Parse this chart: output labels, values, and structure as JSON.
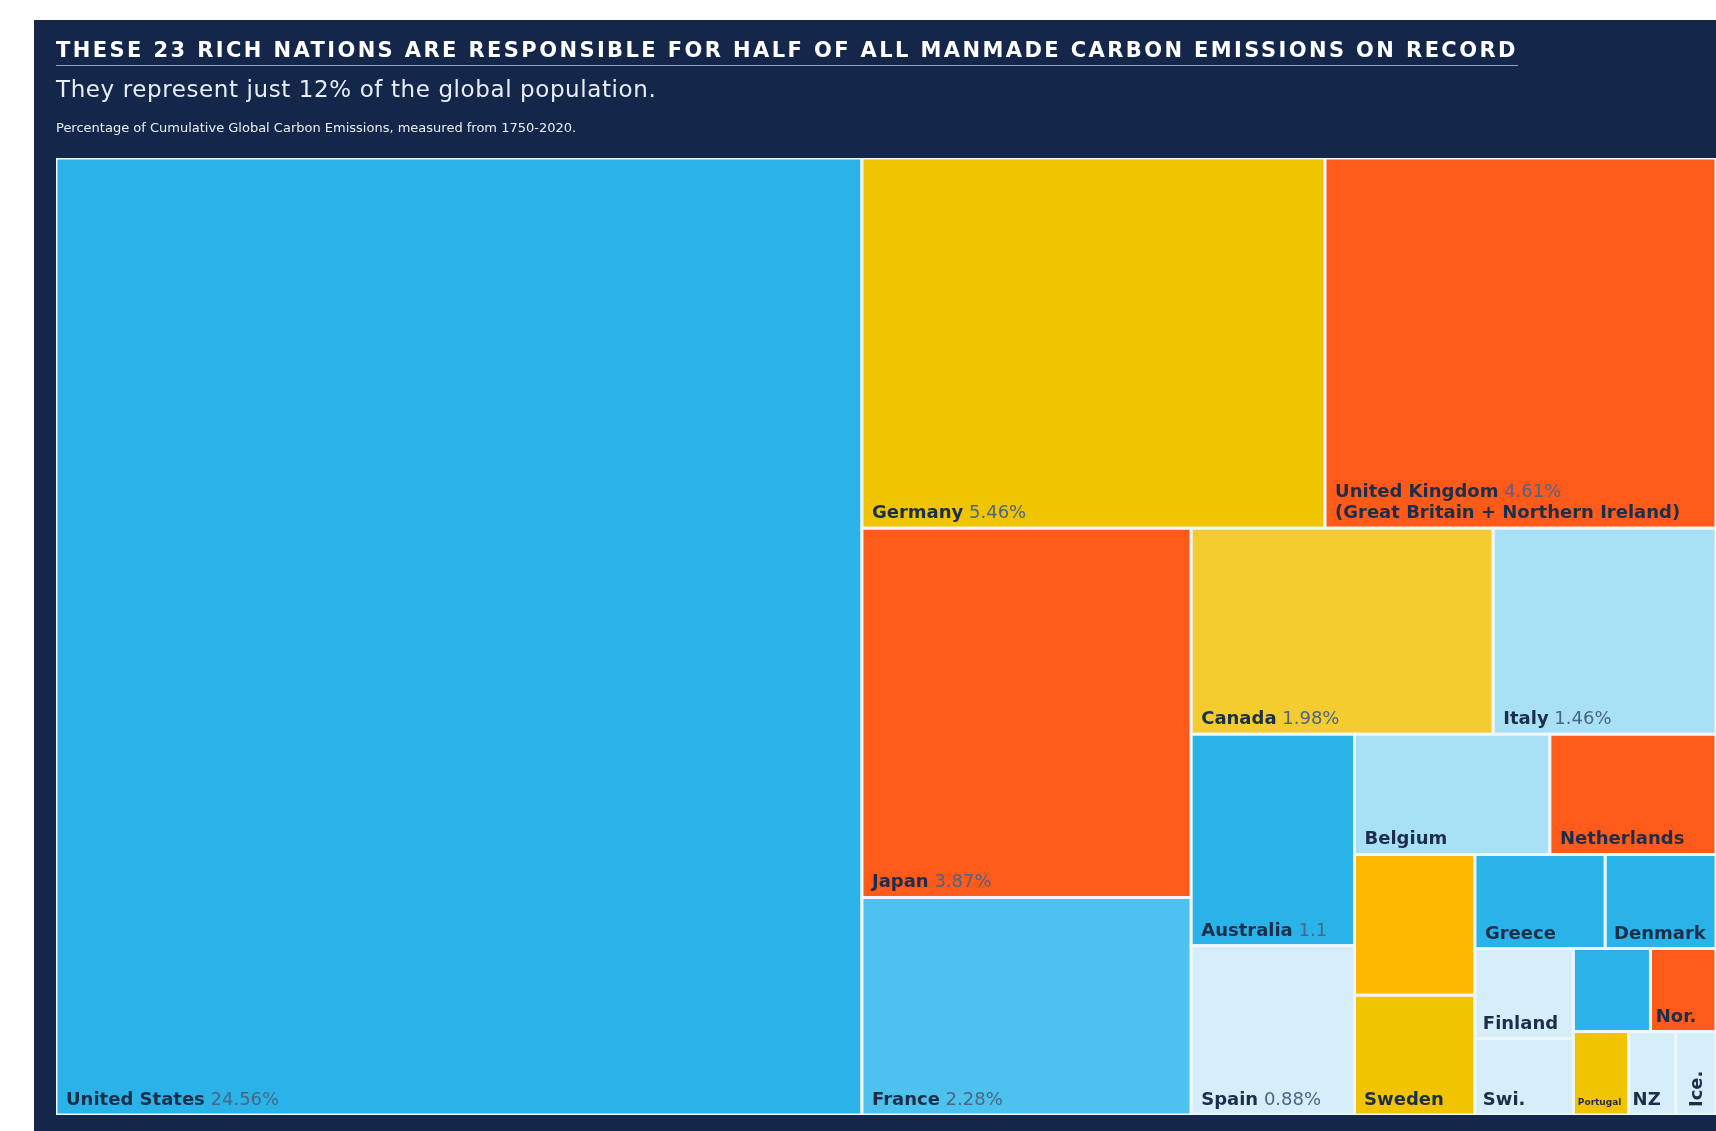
{
  "chart_data": {
    "type": "other",
    "title": "THESE 23 RICH NATIONS ARE RESPONSIBLE FOR HALF OF ALL MANMADE CARBON EMISSIONS ON RECORD",
    "subtitle": "They represent just 12% of the global population.",
    "annotations": [
      "Percentage of Cumulative Global Carbon Emissions, measured from 1750-2020.",
      {
        "text": "(Great Britain + Northern Ireland)",
        "x": "United Kingdom"
      }
    ],
    "categories": [
      "United States",
      "Germany",
      "United Kingdom",
      "Japan",
      "France",
      "Canada",
      "Italy",
      "Australia",
      "Spain",
      "Belgium",
      "Netherlands",
      null,
      "Sweden",
      "Greece",
      "Denmark",
      "Finland",
      "Swi.",
      null,
      "Nor.",
      "Portugal",
      "NZ",
      "Ice."
    ],
    "values": [
      24.56,
      5.46,
      4.61,
      3.87,
      2.28,
      1.98,
      1.46,
      1.1,
      0.88,
      null,
      null,
      null,
      null,
      null,
      null,
      null,
      null,
      null,
      null,
      null,
      null,
      null
    ],
    "value_labels": [
      "24.56%",
      "5.46%",
      "4.61%",
      "3.87%",
      "2.28%",
      "1.98%",
      "1.46%",
      "1.1",
      "0.88%",
      null,
      null,
      null,
      null,
      null,
      null,
      null,
      null,
      null,
      null,
      null,
      null,
      null
    ],
    "colors": [
      "#29b3e8",
      "#f0c400",
      "#ff5a1a",
      "#ff5a1a",
      "#4dc2ee",
      "#f5cc30",
      "#a8e0f5",
      "#29b3e8",
      "#d6eef9",
      "#a8e0f5",
      "#ff5a1a",
      "#ffb800",
      "#f0c400",
      "#29b3e8",
      "#29b3e8",
      "#d6eef9",
      "#d6eef9",
      "#29b3e8",
      "#ff5a1a",
      "#f0c400",
      "#d6eef9",
      "#d6eef9"
    ]
  }
}
